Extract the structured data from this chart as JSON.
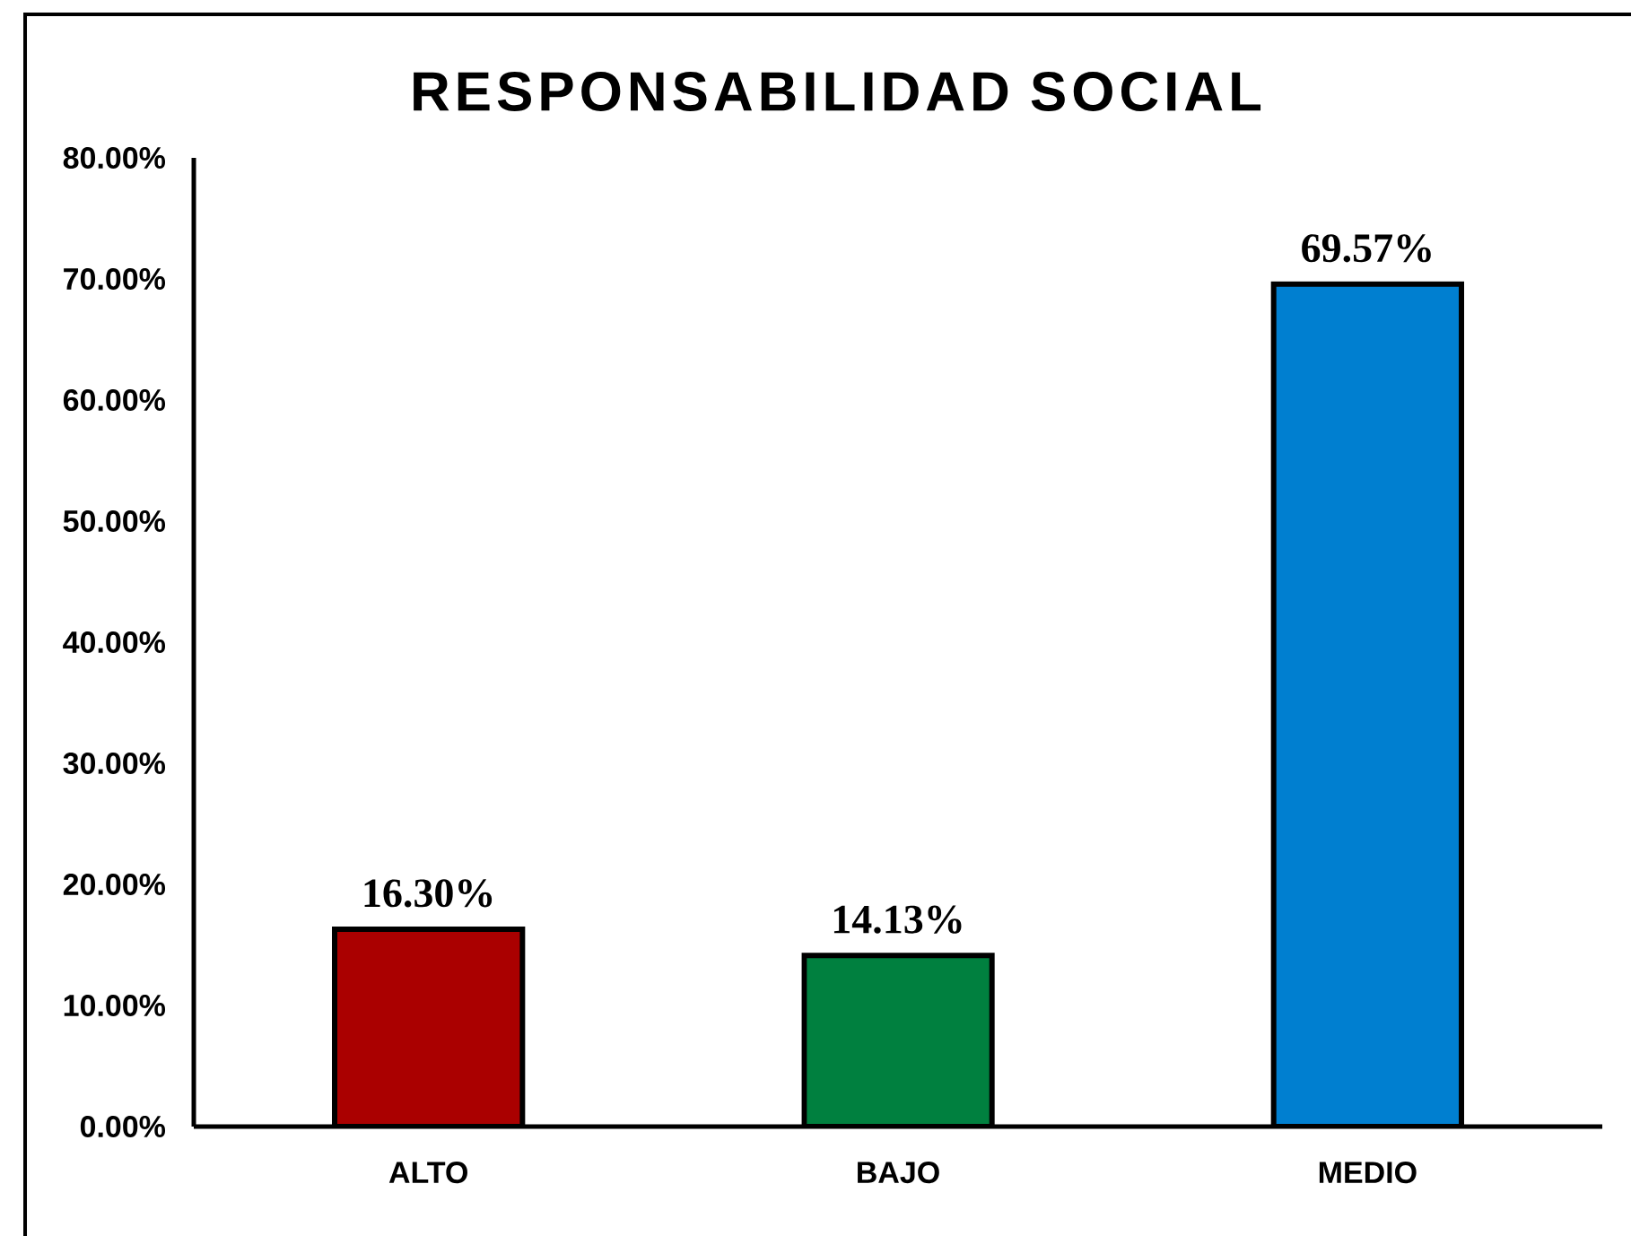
{
  "chart_data": {
    "type": "bar",
    "title": "RESPONSABILIDAD SOCIAL",
    "categories": [
      "ALTO",
      "BAJO",
      "MEDIO"
    ],
    "values": [
      16.3,
      14.13,
      69.57
    ],
    "colors": [
      "#aa0000",
      "#00803f",
      "#007fd0"
    ],
    "value_labels": [
      "16.30%",
      "14.13%",
      "69.57%"
    ],
    "ylim": [
      0,
      80
    ],
    "yticks": [
      {
        "value": 0,
        "label": "0.00%"
      },
      {
        "value": 10,
        "label": "10.00%"
      },
      {
        "value": 20,
        "label": "20.00%"
      },
      {
        "value": 30,
        "label": "30.00%"
      },
      {
        "value": 40,
        "label": "40.00%"
      },
      {
        "value": 50,
        "label": "50.00%"
      },
      {
        "value": 60,
        "label": "60.00%"
      },
      {
        "value": 70,
        "label": "70.00%"
      },
      {
        "value": 80,
        "label": "80.00%"
      }
    ]
  }
}
